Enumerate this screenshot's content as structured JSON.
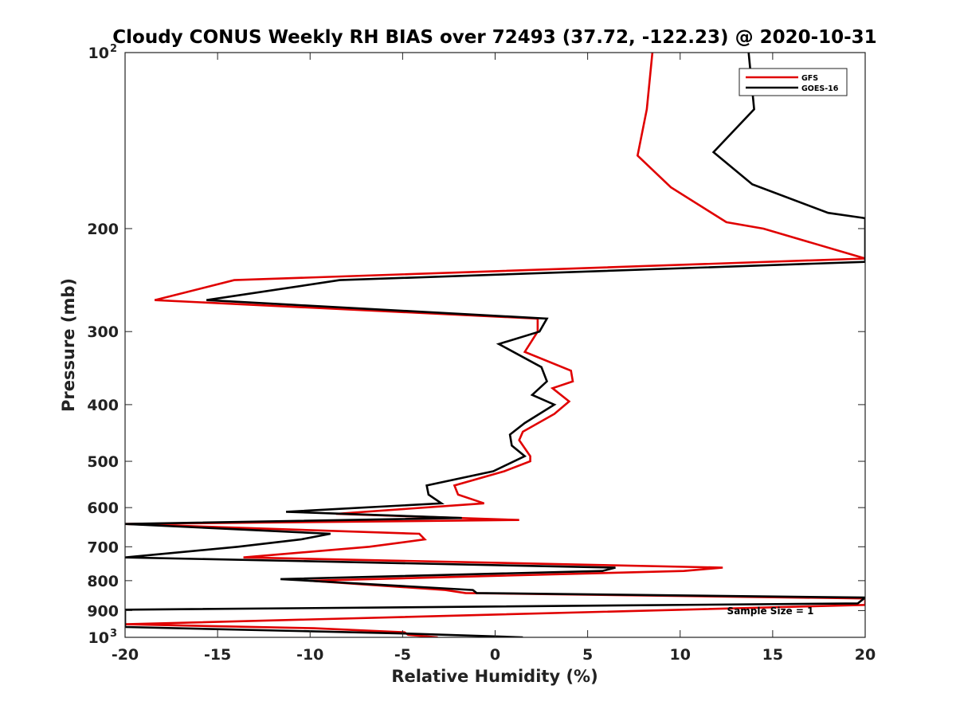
{
  "chart_data": {
    "type": "line",
    "title": "Cloudy CONUS Weekly RH BIAS over 72493 (37.72, -122.23) @ 2020-10-31",
    "xlabel": "Relative Humidity (%)",
    "ylabel": "Pressure (mb)",
    "xlim": [
      -20,
      20
    ],
    "ylim": [
      100,
      1000
    ],
    "y_scale": "log",
    "y_reversed": true,
    "grid": false,
    "legend_position": "top-right",
    "xticks": [
      -20,
      -15,
      -10,
      -5,
      0,
      5,
      10,
      15,
      20
    ],
    "xtick_labels": [
      "-20",
      "-15",
      "-10",
      "-5",
      "0",
      "5",
      "10",
      "15",
      "20"
    ],
    "yticks": [
      200,
      300,
      400,
      500,
      600,
      700,
      800,
      900
    ],
    "ytick_labels": [
      "200",
      "300",
      "400",
      "500",
      "600",
      "700",
      "800",
      "900"
    ],
    "yticks_pow": [
      {
        "value": 100,
        "base": "10",
        "exp": "2"
      },
      {
        "value": 1000,
        "base": "10",
        "exp": "3"
      }
    ],
    "annotation": "Sample Size = 1",
    "series": [
      {
        "name": "GFS",
        "color": "#e00000",
        "points": [
          [
            8.5,
            100
          ],
          [
            8.2,
            125
          ],
          [
            7.7,
            150
          ],
          [
            9.5,
            170
          ],
          [
            12.5,
            195
          ],
          [
            14.5,
            200
          ],
          [
            20,
            225
          ],
          [
            -14.1,
            245
          ],
          [
            -18.4,
            265
          ],
          [
            2.3,
            285
          ],
          [
            2.3,
            300
          ],
          [
            1.6,
            325
          ],
          [
            4.1,
            350
          ],
          [
            4.2,
            365
          ],
          [
            3.1,
            375
          ],
          [
            4.0,
            395
          ],
          [
            3.2,
            415
          ],
          [
            1.5,
            445
          ],
          [
            1.3,
            460
          ],
          [
            1.9,
            490
          ],
          [
            1.9,
            500
          ],
          [
            0.5,
            520
          ],
          [
            -2.2,
            550
          ],
          [
            -2.0,
            570
          ],
          [
            -0.6,
            590
          ],
          [
            -8.6,
            615
          ],
          [
            1.3,
            630
          ],
          [
            -20,
            640
          ],
          [
            -4.1,
            665
          ],
          [
            -3.8,
            680
          ],
          [
            -6.8,
            700
          ],
          [
            -13.6,
            730
          ],
          [
            12.3,
            760
          ],
          [
            10.2,
            770
          ],
          [
            -10,
            800
          ],
          [
            -2.7,
            830
          ],
          [
            -1.6,
            840
          ],
          [
            20,
            858
          ],
          [
            20,
            880
          ],
          [
            -20,
            950
          ],
          [
            -9.8,
            965
          ],
          [
            -4.9,
            980
          ],
          [
            -4.7,
            990
          ],
          [
            -3.1,
            1000
          ]
        ]
      },
      {
        "name": "GOES-16",
        "color": "#000000",
        "points": [
          [
            13.7,
            100
          ],
          [
            14.0,
            125
          ],
          [
            11.8,
            148
          ],
          [
            13.9,
            168
          ],
          [
            18,
            188
          ],
          [
            20,
            192
          ],
          [
            20,
            228
          ],
          [
            -8.4,
            245
          ],
          [
            -15.6,
            265
          ],
          [
            2.8,
            285
          ],
          [
            2.4,
            300
          ],
          [
            0.2,
            315
          ],
          [
            2.5,
            345
          ],
          [
            2.8,
            365
          ],
          [
            2.0,
            385
          ],
          [
            3.2,
            400
          ],
          [
            1.6,
            430
          ],
          [
            0.8,
            450
          ],
          [
            0.9,
            470
          ],
          [
            1.6,
            490
          ],
          [
            -0.1,
            520
          ],
          [
            -3.7,
            550
          ],
          [
            -3.6,
            570
          ],
          [
            -2.9,
            590
          ],
          [
            -11.3,
            610
          ],
          [
            -1.8,
            625
          ],
          [
            -20,
            640
          ],
          [
            -8.9,
            665
          ],
          [
            -10.5,
            680
          ],
          [
            -13.9,
            700
          ],
          [
            -20,
            730
          ],
          [
            6.5,
            760
          ],
          [
            5.8,
            770
          ],
          [
            -11.6,
            795
          ],
          [
            -1.2,
            830
          ],
          [
            -1.0,
            840
          ],
          [
            20,
            855
          ],
          [
            19.6,
            875
          ],
          [
            -20,
            897
          ],
          [
            -20,
            960
          ],
          [
            -4.9,
            985
          ],
          [
            1.5,
            1000
          ]
        ]
      }
    ]
  }
}
